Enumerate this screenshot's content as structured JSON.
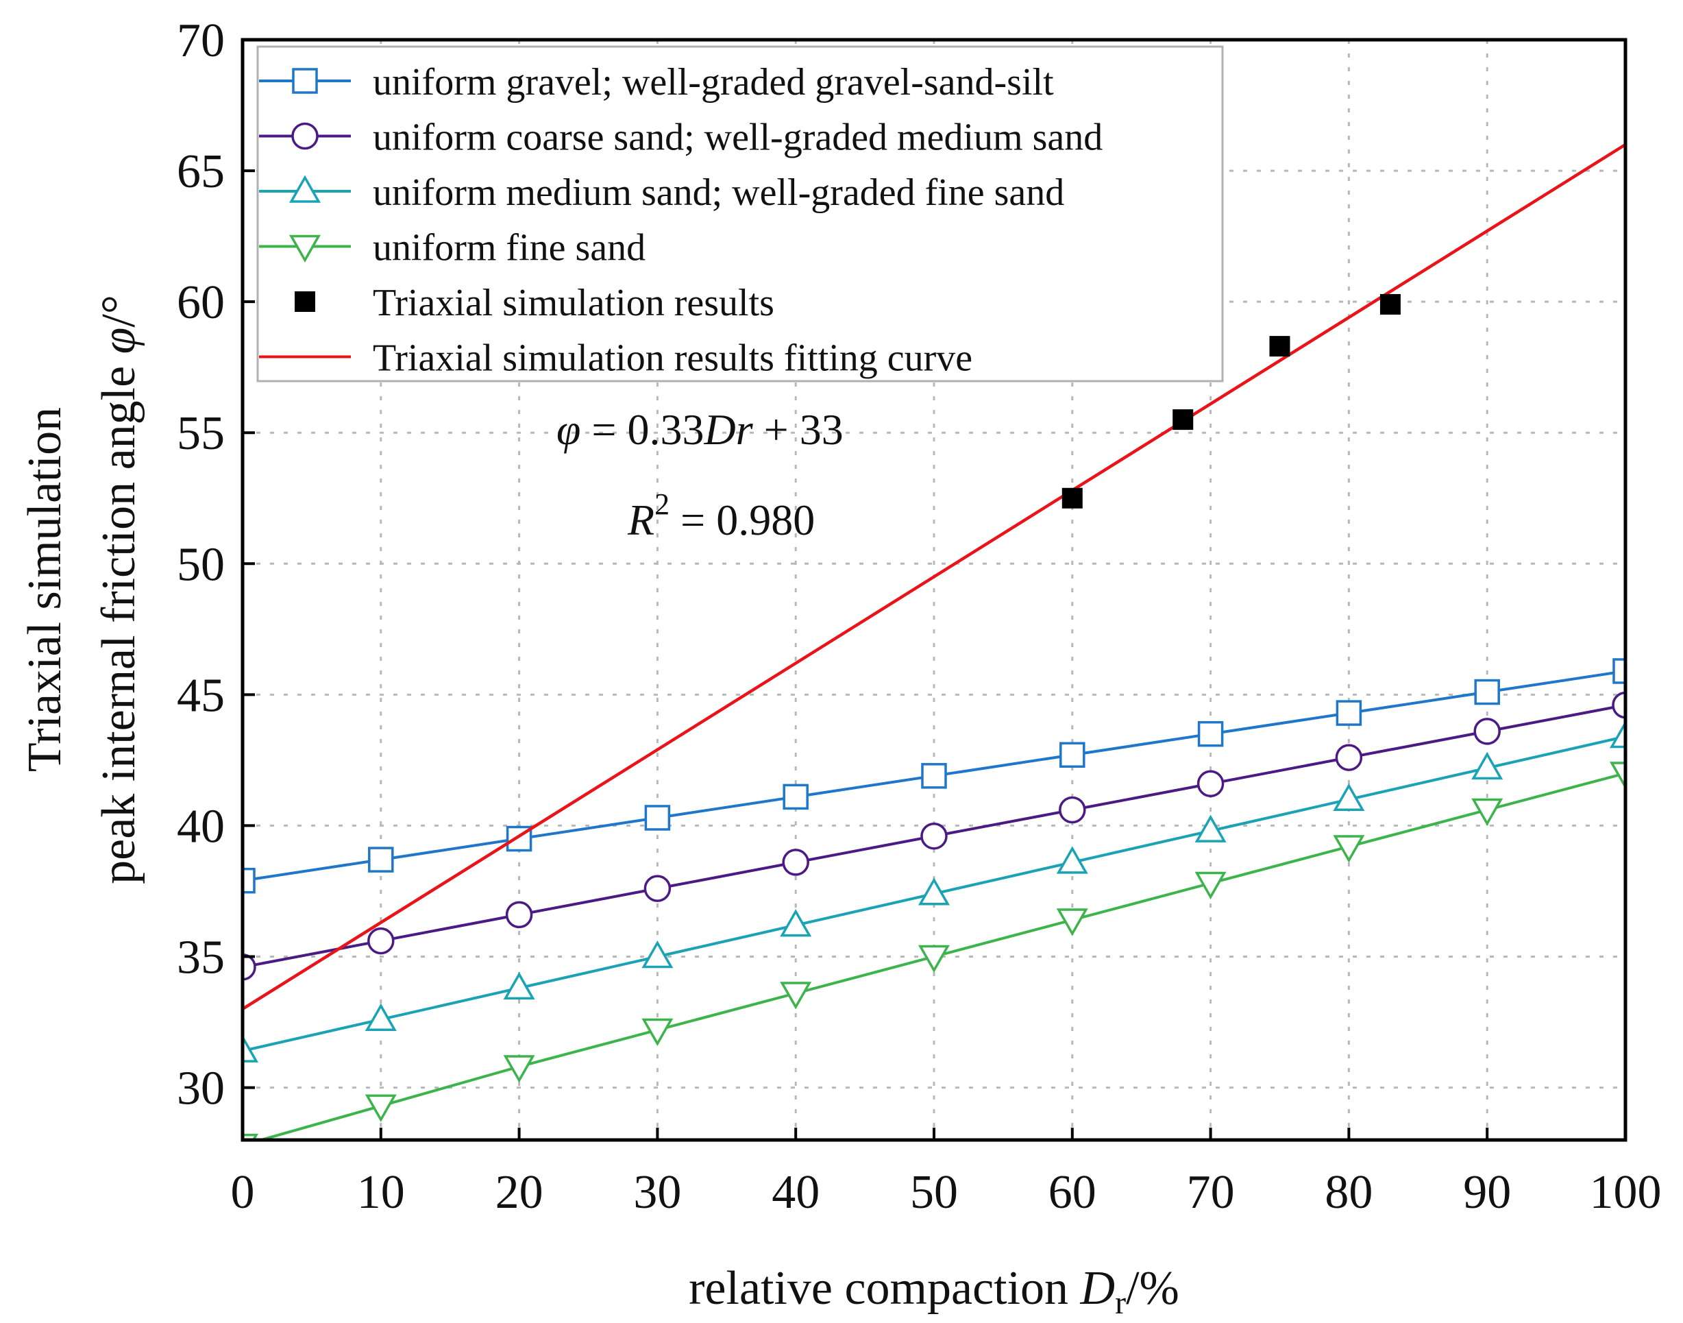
{
  "chart_data": {
    "type": "line",
    "title": "",
    "xlabel": {
      "prefix": "relative compaction ",
      "var": "D",
      "sub": "r",
      "suffix": "/%"
    },
    "ylabel": {
      "line1": "Triaxial simulation",
      "line2_prefix": "peak internal friction angle ",
      "line2_var": "φ",
      "line2_suffix": "/°"
    },
    "xlim": [
      0,
      100
    ],
    "ylim": [
      28,
      70
    ],
    "x_ticks": [
      0,
      10,
      20,
      30,
      40,
      50,
      60,
      70,
      80,
      90,
      100
    ],
    "y_ticks": [
      30,
      35,
      40,
      45,
      50,
      55,
      60,
      65,
      70
    ],
    "grid": true,
    "legend_position": "top-left",
    "x": [
      0,
      10,
      20,
      30,
      40,
      50,
      60,
      70,
      80,
      90,
      100
    ],
    "series": [
      {
        "name": "uniform gravel; well-graded gravel-sand-silt",
        "marker": "square",
        "color": "#1f77c9",
        "values": [
          37.9,
          38.7,
          39.5,
          40.3,
          41.1,
          41.9,
          42.7,
          43.5,
          44.3,
          45.1,
          45.9
        ]
      },
      {
        "name": "uniform coarse sand; well-graded medium sand",
        "marker": "circle",
        "color": "#4b1a84",
        "values": [
          34.6,
          35.6,
          36.6,
          37.6,
          38.6,
          39.6,
          40.6,
          41.6,
          42.6,
          43.6,
          44.6
        ]
      },
      {
        "name": "uniform medium sand; well-graded fine sand",
        "marker": "triangle-up",
        "color": "#1aa3b5",
        "values": [
          31.4,
          32.6,
          33.8,
          35.0,
          36.2,
          37.4,
          38.6,
          39.8,
          41.0,
          42.2,
          43.4
        ]
      },
      {
        "name": "uniform fine sand",
        "marker": "triangle-down",
        "color": "#3cb44b",
        "values": [
          27.8,
          29.3,
          30.8,
          32.2,
          33.6,
          35.0,
          36.4,
          37.8,
          39.2,
          40.6,
          42.0
        ]
      }
    ],
    "scatter": {
      "name": "Triaxial simulation results",
      "marker": "filled-square",
      "color": "#000000",
      "points": [
        {
          "x": 60,
          "y": 52.5
        },
        {
          "x": 68,
          "y": 55.5
        },
        {
          "x": 75,
          "y": 58.3
        },
        {
          "x": 83,
          "y": 59.9
        }
      ]
    },
    "fit": {
      "name": "Triaxial simulation results fitting curve",
      "color": "#e8141a",
      "slope": 0.33,
      "intercept": 33,
      "x_range": [
        0,
        100
      ]
    },
    "annotations": {
      "equation": {
        "lhs": "φ",
        "eq": " = 0.33",
        "var": "Dr",
        "rest": " + 33"
      },
      "r2": {
        "var": "R",
        "sup": "2",
        "rest": " = 0.980"
      }
    }
  }
}
